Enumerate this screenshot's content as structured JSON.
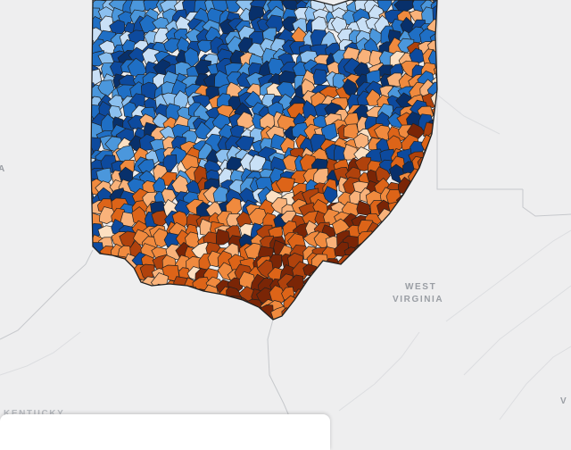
{
  "map": {
    "region_labels": [
      {
        "text": "WEST"
      },
      {
        "text": "VIRGINIA"
      },
      {
        "text": "KENTUCKY"
      },
      {
        "text": "A"
      },
      {
        "text": "V"
      }
    ],
    "choropleth": {
      "palette_blue": [
        "#08306b",
        "#0d4a9e",
        "#1f6fc5",
        "#4b97dc",
        "#8cc0ef",
        "#c9e0f6"
      ],
      "palette_orange": [
        "#fde0c2",
        "#f9b27a",
        "#f08a3e",
        "#dd6418",
        "#b0420c",
        "#7a2506"
      ],
      "water_color": "#c9d3dc",
      "background_color": "#eeeeef",
      "boundary_color": "#202020"
    }
  },
  "legend": {
    "title": ""
  }
}
